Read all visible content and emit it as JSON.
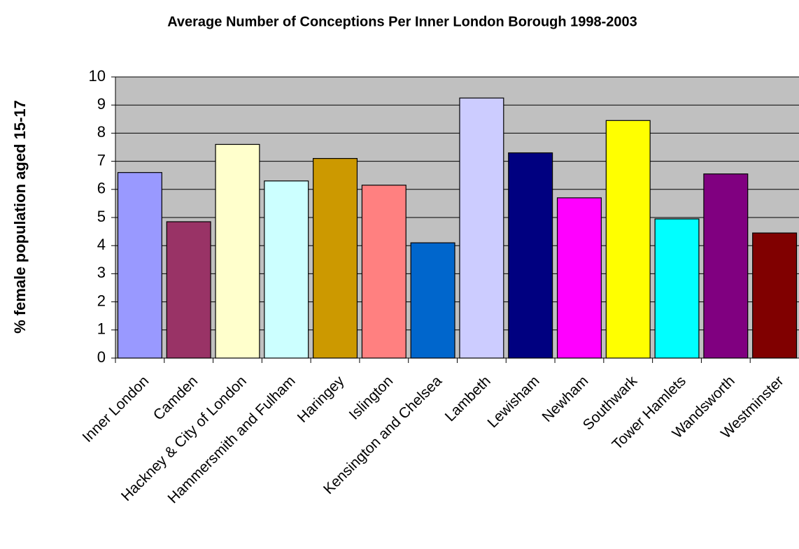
{
  "chart_data": {
    "type": "bar",
    "title": "Average Number of Conceptions Per Inner London Borough 1998-2003",
    "y_label": "% female population aged 15-17",
    "categories": [
      "Inner London",
      "Camden",
      "Hackney & City of London",
      "Hammersmith and Fulham",
      "Haringey",
      "Islington",
      "Kensington and Chelsea",
      "Lambeth",
      "Lewisham",
      "Newham",
      "Southwark",
      "Tower Hamlets",
      "Wandsworth",
      "Westminster"
    ],
    "values": [
      6.6,
      4.85,
      7.6,
      6.3,
      7.1,
      6.15,
      4.1,
      9.25,
      7.3,
      5.7,
      8.45,
      4.95,
      6.55,
      4.45
    ],
    "colors": [
      "#9999ff",
      "#993366",
      "#ffffcc",
      "#ccffff",
      "#cc9900",
      "#ff8080",
      "#0066cc",
      "#ccccff",
      "#000080",
      "#ff00ff",
      "#ffff00",
      "#00ffff",
      "#800080",
      "#800000"
    ],
    "ylim": [
      0,
      10
    ],
    "yticks": [
      0,
      1,
      2,
      3,
      4,
      5,
      6,
      7,
      8,
      9,
      10
    ],
    "grid": true
  }
}
